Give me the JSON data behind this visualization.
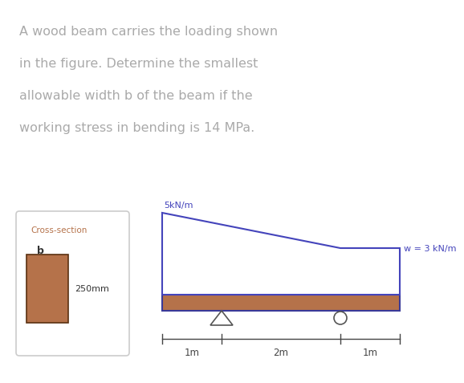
{
  "title_lines": [
    "A wood beam carries the loading shown",
    "in the figure. Determine the smallest",
    "allowable width b of the beam if the",
    "working stress in bending is 14 MPa."
  ],
  "title_color": "#aaaaaa",
  "title_fontsize": 11.5,
  "bg_color": "#ffffff",
  "beam_color": "#b5724a",
  "beam_edge_color": "#3a3a99",
  "load_line_color": "#4444bb",
  "load_label_5": "5kN/m",
  "load_label_w": "w = 3 kN/m",
  "cross_label": "Cross-section",
  "cross_b_label": "b",
  "cross_mm_label": "250mm",
  "dim_labels": [
    "1m",
    "2m",
    "1m"
  ],
  "cross_rect_color": "#b5724a",
  "cross_rect_edge": "#5a3010",
  "cross_box_edge": "#cccccc",
  "support_color": "#555555",
  "dim_color": "#444444",
  "text_color": "#333333"
}
